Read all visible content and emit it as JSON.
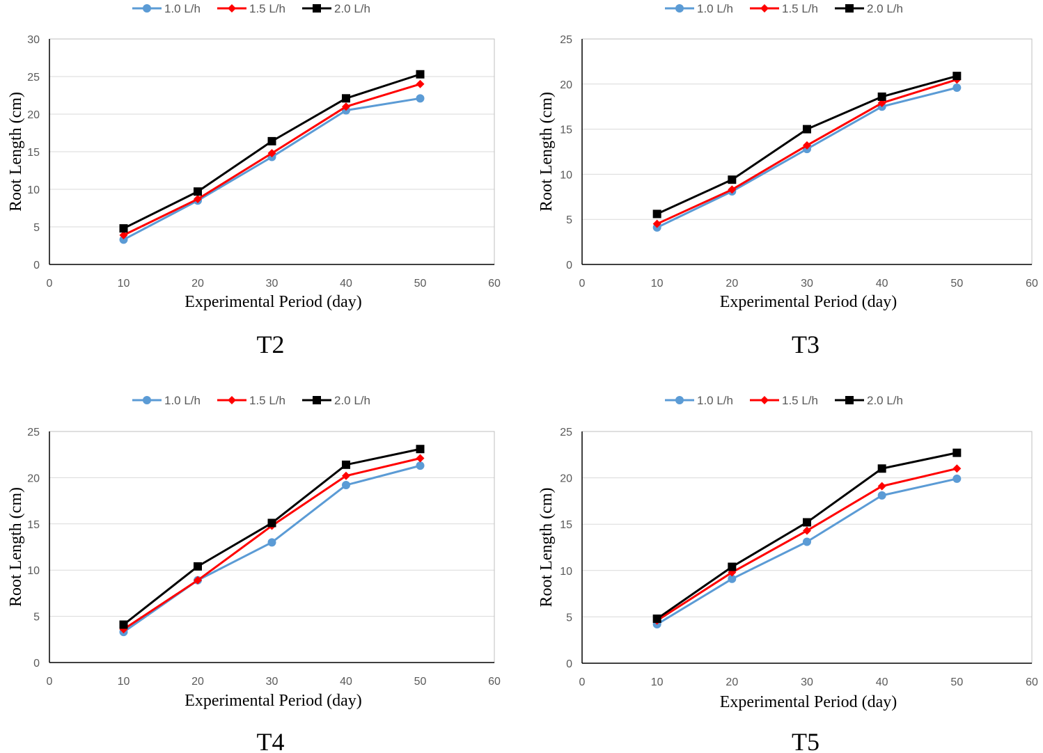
{
  "chart_data": [
    {
      "type": "line",
      "title": "T2",
      "xlabel": "Experimental Period (day)",
      "ylabel": "Root Length (cm)",
      "xlim": [
        0,
        60
      ],
      "ylim": [
        0,
        30
      ],
      "xticks": [
        "0",
        "10",
        "20",
        "30",
        "40",
        "50",
        "60"
      ],
      "yticks": [
        "0",
        "5",
        "10",
        "15",
        "20",
        "25",
        "30"
      ],
      "legend_position": "top",
      "x": [
        10,
        20,
        30,
        40,
        50
      ],
      "series": [
        {
          "name": "1.0 L/h",
          "color": "#5b9bd5",
          "marker": "circle",
          "values": [
            3.3,
            8.5,
            14.3,
            20.5,
            22.1
          ]
        },
        {
          "name": "1.5 L/h",
          "color": "#ff0000",
          "marker": "diamond",
          "values": [
            3.9,
            8.7,
            14.8,
            21.0,
            24.0
          ]
        },
        {
          "name": "2.0 L/h",
          "color": "#000000",
          "marker": "square",
          "values": [
            4.8,
            9.7,
            16.4,
            22.1,
            25.3
          ]
        }
      ]
    },
    {
      "type": "line",
      "title": "T3",
      "xlabel": "Experimental Period (day)",
      "ylabel": "Root Length (cm)",
      "xlim": [
        0,
        60
      ],
      "ylim": [
        0,
        25
      ],
      "xticks": [
        "0",
        "10",
        "20",
        "30",
        "40",
        "50",
        "60"
      ],
      "yticks": [
        "0",
        "5",
        "10",
        "15",
        "20",
        "25"
      ],
      "legend_position": "top",
      "x": [
        10,
        20,
        30,
        40,
        50
      ],
      "series": [
        {
          "name": "1.0 L/h",
          "color": "#5b9bd5",
          "marker": "circle",
          "values": [
            4.1,
            8.1,
            12.8,
            17.5,
            19.6
          ]
        },
        {
          "name": "1.5 L/h",
          "color": "#ff0000",
          "marker": "diamond",
          "values": [
            4.5,
            8.3,
            13.2,
            17.9,
            20.5
          ]
        },
        {
          "name": "2.0 L/h",
          "color": "#000000",
          "marker": "square",
          "values": [
            5.6,
            9.4,
            15.0,
            18.6,
            20.9
          ]
        }
      ]
    },
    {
      "type": "line",
      "title": "T4",
      "xlabel": "Experimental Period (day)",
      "ylabel": "Root Length (cm)",
      "xlim": [
        0,
        60
      ],
      "ylim": [
        0,
        25
      ],
      "xticks": [
        "0",
        "10",
        "20",
        "30",
        "40",
        "50",
        "60"
      ],
      "yticks": [
        "0",
        "5",
        "10",
        "15",
        "20",
        "25"
      ],
      "legend_position": "top",
      "x": [
        10,
        20,
        30,
        40,
        50
      ],
      "series": [
        {
          "name": "1.0 L/h",
          "color": "#5b9bd5",
          "marker": "circle",
          "values": [
            3.3,
            8.9,
            13.0,
            19.2,
            21.3
          ]
        },
        {
          "name": "1.5 L/h",
          "color": "#ff0000",
          "marker": "diamond",
          "values": [
            3.6,
            8.9,
            14.8,
            20.2,
            22.1
          ]
        },
        {
          "name": "2.0 L/h",
          "color": "#000000",
          "marker": "square",
          "values": [
            4.1,
            10.4,
            15.1,
            21.4,
            23.1
          ]
        }
      ]
    },
    {
      "type": "line",
      "title": "T5",
      "xlabel": "Experimental Period (day)",
      "ylabel": "Root Length (cm)",
      "xlim": [
        0,
        60
      ],
      "ylim": [
        0,
        25
      ],
      "xticks": [
        "0",
        "10",
        "20",
        "30",
        "40",
        "50",
        "60"
      ],
      "yticks": [
        "0",
        "5",
        "10",
        "15",
        "20",
        "25"
      ],
      "legend_position": "top",
      "x": [
        10,
        20,
        30,
        40,
        50
      ],
      "series": [
        {
          "name": "1.0 L/h",
          "color": "#5b9bd5",
          "marker": "circle",
          "values": [
            4.2,
            9.1,
            13.1,
            18.1,
            19.9
          ]
        },
        {
          "name": "1.5 L/h",
          "color": "#ff0000",
          "marker": "diamond",
          "values": [
            4.6,
            9.8,
            14.3,
            19.1,
            21.0
          ]
        },
        {
          "name": "2.0 L/h",
          "color": "#000000",
          "marker": "square",
          "values": [
            4.8,
            10.4,
            15.2,
            21.0,
            22.7
          ]
        }
      ]
    }
  ]
}
